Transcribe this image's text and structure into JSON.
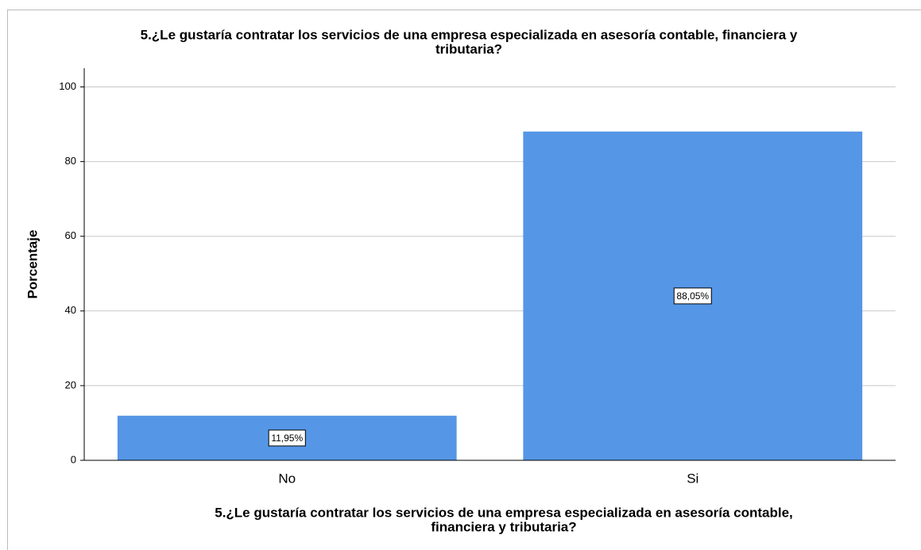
{
  "chart_data": {
    "type": "bar",
    "title": [
      "5.¿Le gustaría contratar los servicios de una empresa especializada en asesoría contable, financiera y",
      "tributaria?"
    ],
    "ylabel": "Porcentaje",
    "xlabel": [
      "5.¿Le gustaría contratar los servicios de una empresa especializada en asesoría contable,",
      "financiera y tributaria?"
    ],
    "categories": [
      "No",
      "Si"
    ],
    "values": [
      11.95,
      88.05
    ],
    "value_labels": [
      "11,95%",
      "88,05%"
    ],
    "color": "#5596e6",
    "ylim": [
      0,
      105
    ],
    "yticks": [
      0,
      20,
      40,
      60,
      80,
      100
    ],
    "grid": true
  }
}
